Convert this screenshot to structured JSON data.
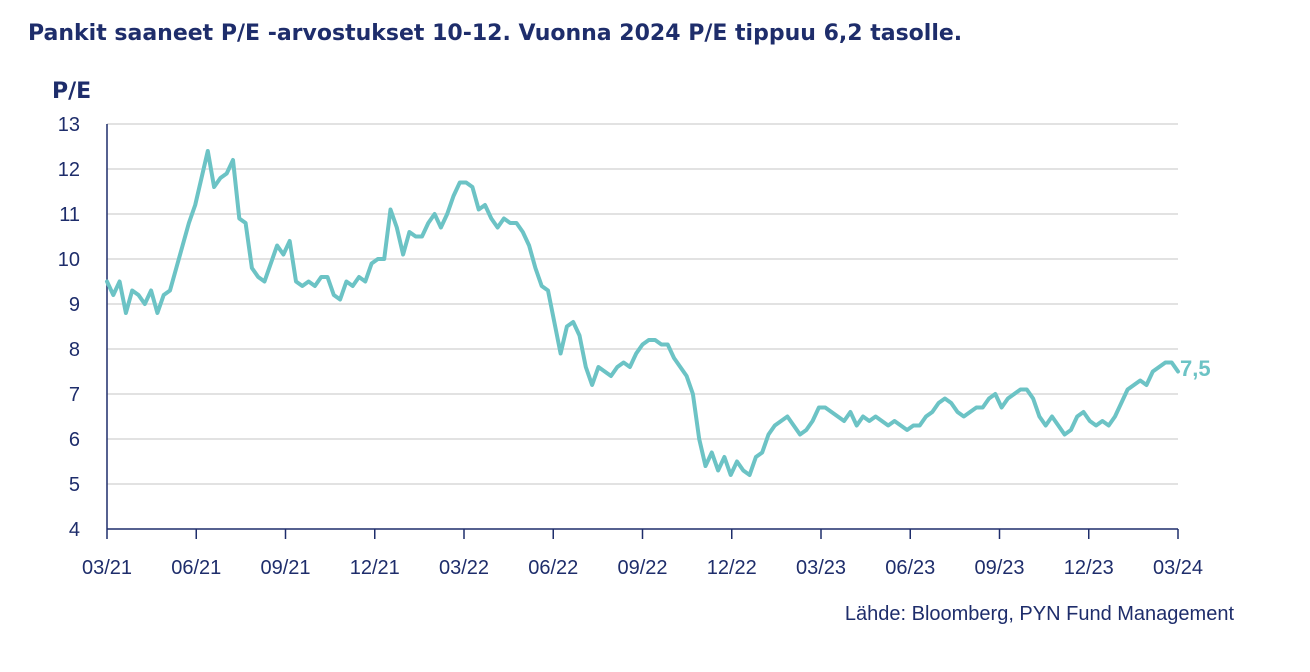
{
  "chart_data": {
    "type": "line",
    "title": "Pankit saaneet P/E -arvostukset 10-12. Vuonna 2024 P/E tippuu 6,2 tasolle.",
    "ylabel": "P/E",
    "xlabel": "",
    "source": "Lähde: Bloomberg, PYN Fund Management",
    "end_label": "7,5",
    "ylim": [
      4,
      13
    ],
    "y_ticks": [
      "4",
      "5",
      "6",
      "7",
      "8",
      "9",
      "10",
      "11",
      "12",
      "13"
    ],
    "x_ticks": [
      "03/21",
      "06/21",
      "09/21",
      "12/21",
      "03/22",
      "06/22",
      "09/22",
      "12/22",
      "03/23",
      "06/23",
      "09/23",
      "12/23",
      "03/24"
    ],
    "grid": "horizontal",
    "legend": "none",
    "colors": {
      "title": "#1e2d6b",
      "axis": "#1e2d6b",
      "line": "#6cc3c5",
      "grid": "#d9d9d9"
    },
    "series": [
      {
        "values": [
          9.5,
          9.2,
          9.5,
          8.8,
          9.3,
          9.2,
          9.0,
          9.3,
          8.8,
          9.2,
          9.3,
          9.8,
          10.3,
          10.8,
          11.2,
          11.8,
          12.4,
          11.6,
          11.8,
          11.9,
          12.2,
          10.9,
          10.8,
          9.8,
          9.6,
          9.5,
          9.9,
          10.3,
          10.1,
          10.4,
          9.5,
          9.4,
          9.5,
          9.4,
          9.6,
          9.6,
          9.2,
          9.1,
          9.5,
          9.4,
          9.6,
          9.5,
          9.9,
          10.0,
          10.0,
          11.1,
          10.7,
          10.1,
          10.6,
          10.5,
          10.5,
          10.8,
          11.0,
          10.7,
          11.0,
          11.4,
          11.7,
          11.7,
          11.6,
          11.1,
          11.2,
          10.9,
          10.7,
          10.9,
          10.8,
          10.8,
          10.6,
          10.3,
          9.8,
          9.4,
          9.3,
          8.6,
          7.9,
          8.5,
          8.6,
          8.3,
          7.6,
          7.2,
          7.6,
          7.5,
          7.4,
          7.6,
          7.7,
          7.6,
          7.9,
          8.1,
          8.2,
          8.2,
          8.1,
          8.1,
          7.8,
          7.6,
          7.4,
          7.0,
          6.0,
          5.4,
          5.7,
          5.3,
          5.6,
          5.2,
          5.5,
          5.3,
          5.2,
          5.6,
          5.7,
          6.1,
          6.3,
          6.4,
          6.5,
          6.3,
          6.1,
          6.2,
          6.4,
          6.7,
          6.7,
          6.6,
          6.5,
          6.4,
          6.6,
          6.3,
          6.5,
          6.4,
          6.5,
          6.4,
          6.3,
          6.4,
          6.3,
          6.2,
          6.3,
          6.3,
          6.5,
          6.6,
          6.8,
          6.9,
          6.8,
          6.6,
          6.5,
          6.6,
          6.7,
          6.7,
          6.9,
          7.0,
          6.7,
          6.9,
          7.0,
          7.1,
          7.1,
          6.9,
          6.5,
          6.3,
          6.5,
          6.3,
          6.1,
          6.2,
          6.5,
          6.6,
          6.4,
          6.3,
          6.4,
          6.3,
          6.5,
          6.8,
          7.1,
          7.2,
          7.3,
          7.2,
          7.5,
          7.6,
          7.7,
          7.7,
          7.5
        ]
      }
    ]
  }
}
